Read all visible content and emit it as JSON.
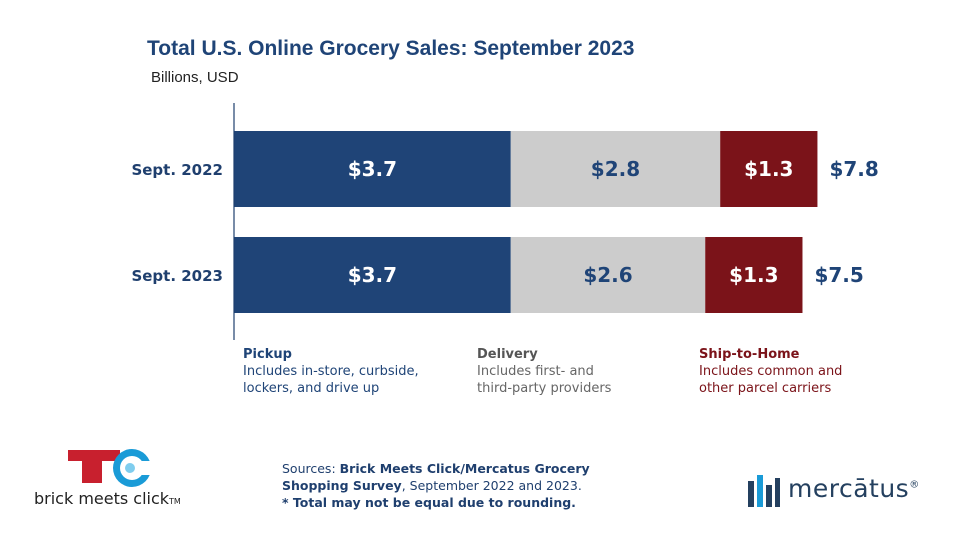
{
  "chart_data": {
    "type": "bar",
    "orientation": "horizontal",
    "stacked": true,
    "title": "Total U.S. Online Grocery Sales: September 2023",
    "subtitle": "Billions, USD",
    "categories": [
      "Sept. 2022",
      "Sept. 2023"
    ],
    "series": [
      {
        "name": "Pickup",
        "values": [
          3.7,
          3.7
        ],
        "labels": [
          "$3.7",
          "$3.7"
        ],
        "color": "#1f4477",
        "label_color": "#ffffff"
      },
      {
        "name": "Delivery",
        "values": [
          2.8,
          2.6
        ],
        "labels": [
          "$2.8",
          "$2.6"
        ],
        "color": "#cccccc",
        "label_color": "#1f4477"
      },
      {
        "name": "Ship-to-Home",
        "values": [
          1.3,
          1.3
        ],
        "labels": [
          "$1.3",
          "$1.3"
        ],
        "color": "#7b1319",
        "label_color": "#ffffff"
      }
    ],
    "totals": [
      7.8,
      7.5
    ],
    "total_labels": [
      "$7.8",
      "$7.5"
    ],
    "xlim": [
      0,
      8
    ],
    "grid": false,
    "legend_position": "bottom"
  },
  "legend": [
    {
      "name": "Pickup",
      "desc": [
        "Includes in-store, curbside,",
        "lockers, and drive up"
      ]
    },
    {
      "name": "Delivery",
      "desc": [
        "Includes first- and",
        "third-party providers"
      ]
    },
    {
      "name": "Ship-to-Home",
      "desc": [
        "Includes common and",
        "other parcel carriers"
      ]
    }
  ],
  "sources": {
    "prefix": "Sources: ",
    "bold1": "Brick Meets Click/Mercatus Grocery",
    "bold2": "Shopping Survey",
    "rest": ", September 2022 and 2023.",
    "note": "* Total may not be equal due to rounding."
  },
  "logos": {
    "bmc_text": "brick meets click",
    "bmc_tm": "TM",
    "mercatus_text": "mercātus",
    "mercatus_reg": "®"
  }
}
